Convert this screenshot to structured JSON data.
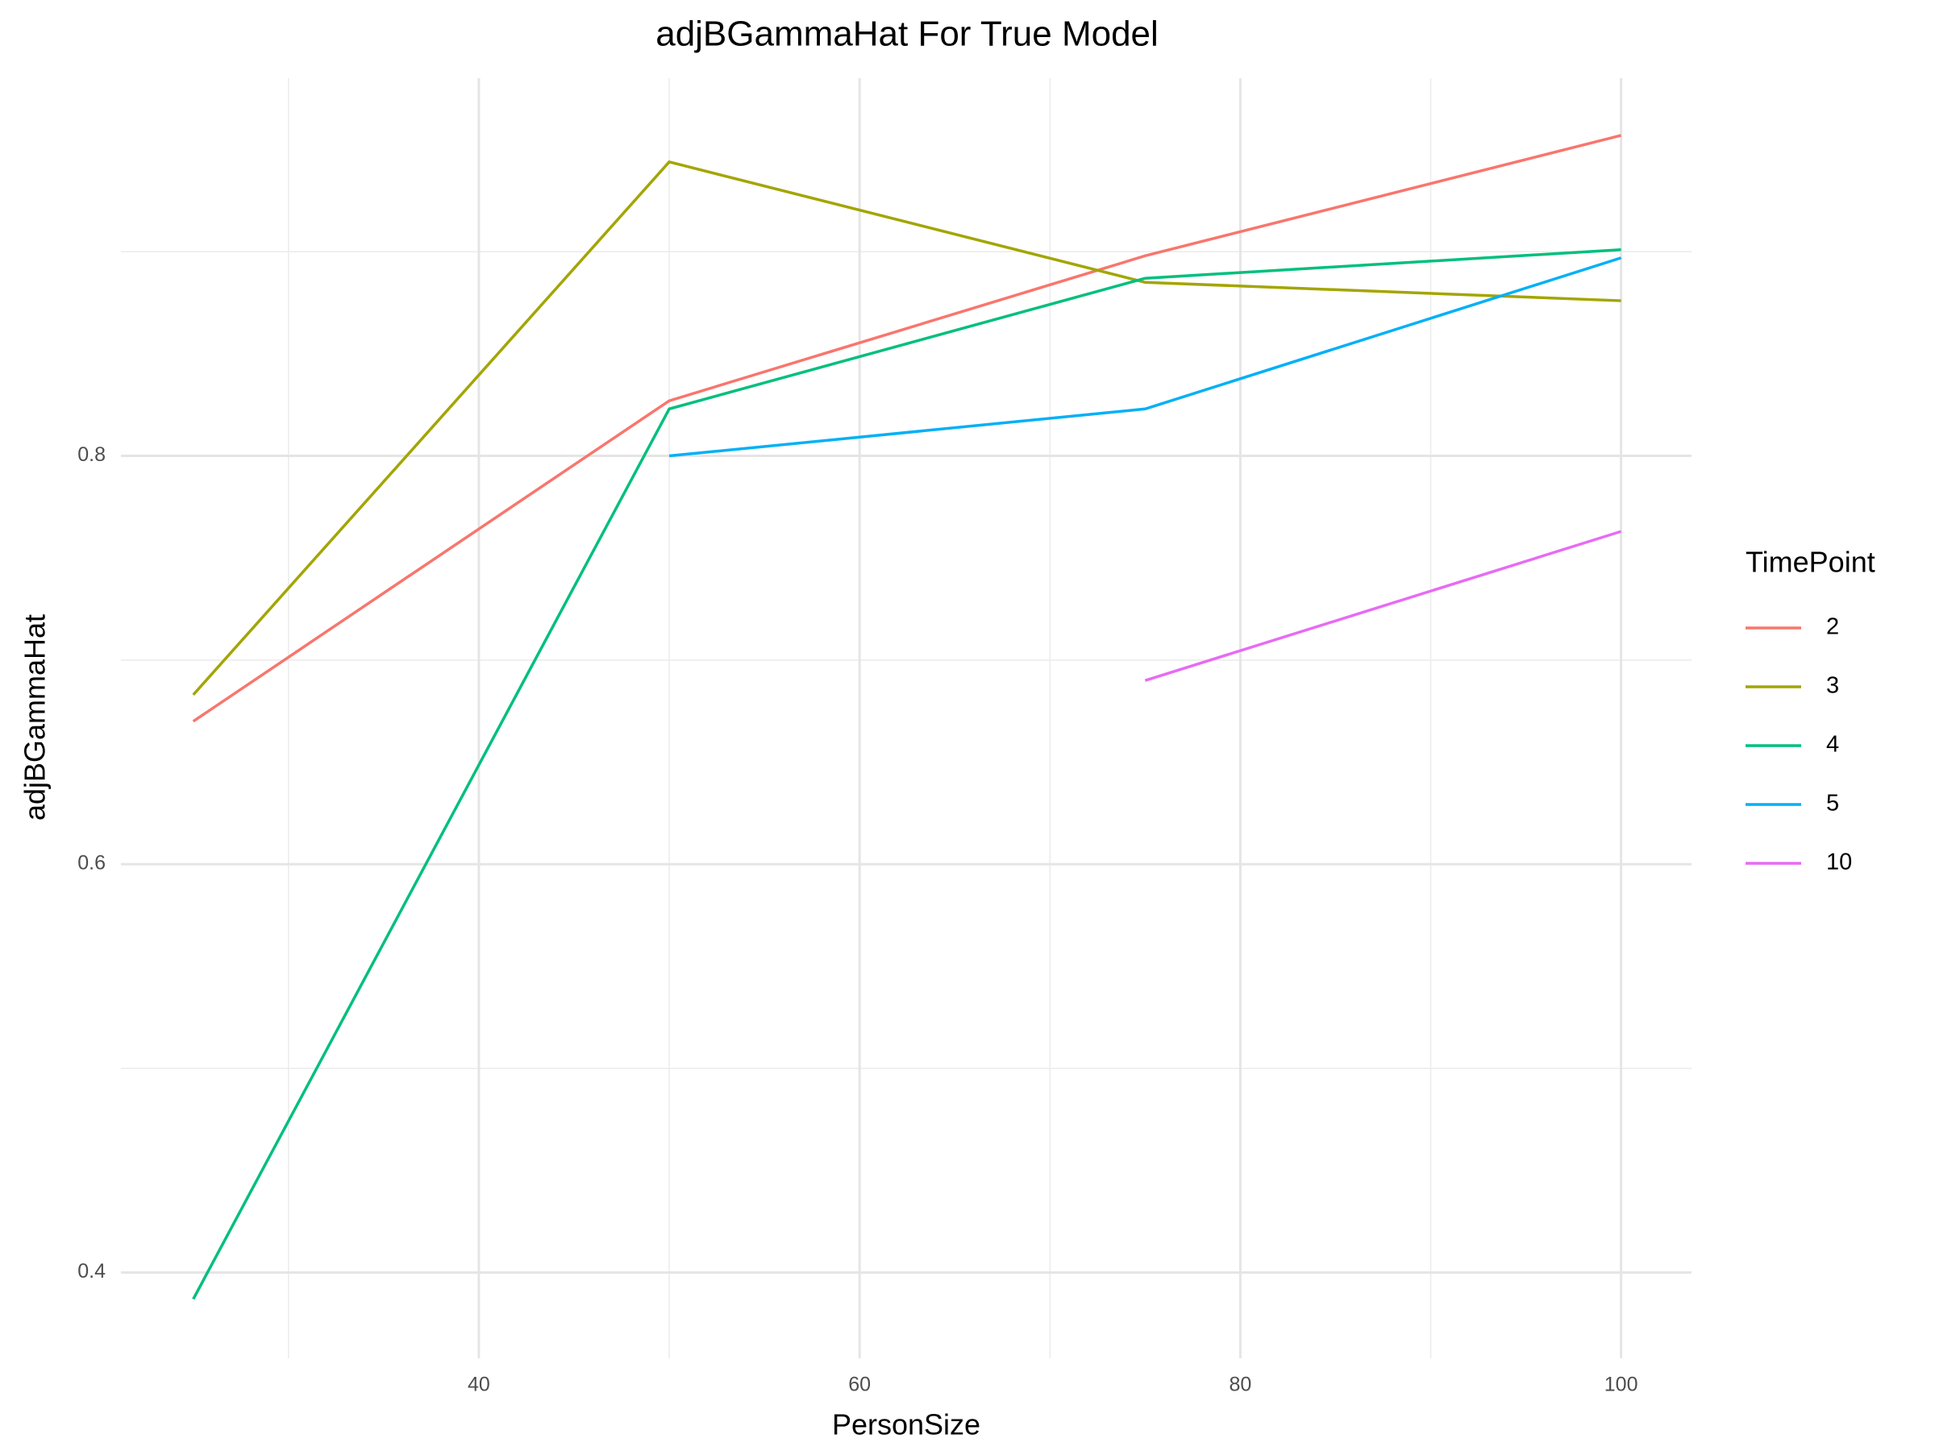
{
  "chart_data": {
    "type": "line",
    "title": "adjBGammaHat For True Model",
    "x_label": "PersonSize",
    "y_label": "adjBGammaHat",
    "legend_title": "TimePoint",
    "x": [
      25,
      50,
      75,
      100
    ],
    "series": [
      {
        "name": "2",
        "color": "#F8766D",
        "values": [
          0.67,
          0.827,
          0.898,
          0.957
        ]
      },
      {
        "name": "3",
        "color": "#A3A500",
        "values": [
          0.683,
          0.944,
          0.885,
          0.876
        ]
      },
      {
        "name": "4",
        "color": "#00BF7D",
        "values": [
          0.387,
          0.823,
          0.887,
          0.901
        ]
      },
      {
        "name": "5",
        "color": "#00B0F6",
        "values": [
          null,
          0.8,
          0.823,
          0.897
        ]
      },
      {
        "name": "10",
        "color": "#E76BF3",
        "values": [
          null,
          null,
          0.69,
          0.763
        ]
      }
    ],
    "xlim": [
      21.2,
      103.7
    ],
    "ylim": [
      0.358,
      0.985
    ],
    "xticks": [
      40,
      60,
      80,
      100
    ],
    "yticks": [
      0.4,
      0.6,
      0.8
    ],
    "x_minor_ticks": [
      30,
      50,
      70,
      90
    ],
    "y_minor_ticks": [
      0.5,
      0.7,
      0.9
    ],
    "grid": true,
    "legend_position": "right"
  }
}
